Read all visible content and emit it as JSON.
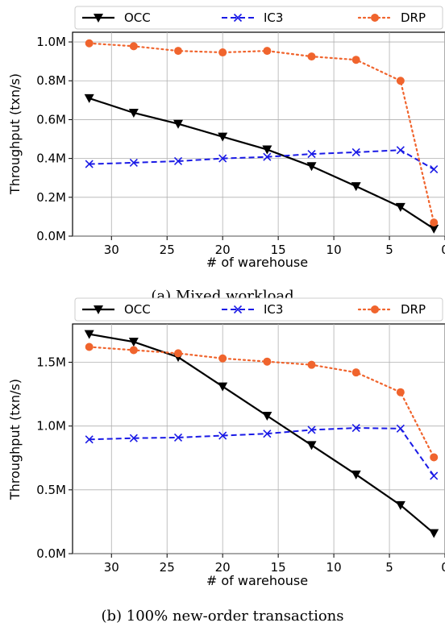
{
  "colors": {
    "OCC": "#000000",
    "IC3": "#1a1ae6",
    "DRP": "#f0642d",
    "grid": "#b0b0b0"
  },
  "chart_data": [
    {
      "type": "line",
      "caption": "(a) Mixed workload",
      "xlabel": "# of warehouse",
      "ylabel": "Throughput (txn/s)",
      "x_inverted": true,
      "xlim": [
        33.5,
        0
      ],
      "ylim": [
        0,
        1.05
      ],
      "xticks": [
        30,
        25,
        20,
        15,
        10,
        5,
        0
      ],
      "yticks": [
        0,
        0.2,
        0.4,
        0.6,
        0.8,
        1.0
      ],
      "ytick_labels": [
        "0.0M",
        "0.2M",
        "0.4M",
        "0.6M",
        "0.8M",
        "1.0M"
      ],
      "grid": true,
      "legend_position": "top",
      "x": [
        32,
        28,
        24,
        20,
        16,
        12,
        8,
        4,
        1
      ],
      "series": [
        {
          "name": "OCC",
          "marker": "triangle-down",
          "line": "solid",
          "values": [
            0.71,
            0.635,
            0.578,
            0.512,
            0.446,
            0.36,
            0.257,
            0.15,
            0.038
          ]
        },
        {
          "name": "IC3",
          "marker": "x",
          "line": "dashed",
          "values": [
            0.371,
            0.378,
            0.386,
            0.4,
            0.408,
            0.423,
            0.432,
            0.443,
            0.344
          ]
        },
        {
          "name": "DRP",
          "marker": "circle",
          "line": "dotted",
          "values": [
            0.993,
            0.978,
            0.954,
            0.946,
            0.954,
            0.925,
            0.908,
            0.8,
            0.07
          ]
        }
      ]
    },
    {
      "type": "line",
      "caption": "(b) 100% new-order transactions",
      "xlabel": "# of warehouse",
      "ylabel": "Throughput (txn/s)",
      "x_inverted": true,
      "xlim": [
        33.5,
        0
      ],
      "ylim": [
        0,
        1.8
      ],
      "xticks": [
        30,
        25,
        20,
        15,
        10,
        5,
        0
      ],
      "yticks": [
        0,
        0.5,
        1.0,
        1.5
      ],
      "ytick_labels": [
        "0.0M",
        "0.5M",
        "1.0M",
        "1.5M"
      ],
      "grid": true,
      "legend_position": "top",
      "x": [
        32,
        28,
        24,
        20,
        16,
        12,
        8,
        4,
        1
      ],
      "series": [
        {
          "name": "OCC",
          "marker": "triangle-down",
          "line": "solid",
          "values": [
            1.72,
            1.66,
            1.54,
            1.31,
            1.08,
            0.85,
            0.62,
            0.38,
            0.16
          ]
        },
        {
          "name": "IC3",
          "marker": "x",
          "line": "dashed",
          "values": [
            0.895,
            0.905,
            0.91,
            0.925,
            0.94,
            0.97,
            0.985,
            0.98,
            0.61
          ]
        },
        {
          "name": "DRP",
          "marker": "circle",
          "line": "dotted",
          "values": [
            1.62,
            1.595,
            1.57,
            1.53,
            1.505,
            1.48,
            1.42,
            1.265,
            0.755
          ]
        }
      ]
    }
  ]
}
